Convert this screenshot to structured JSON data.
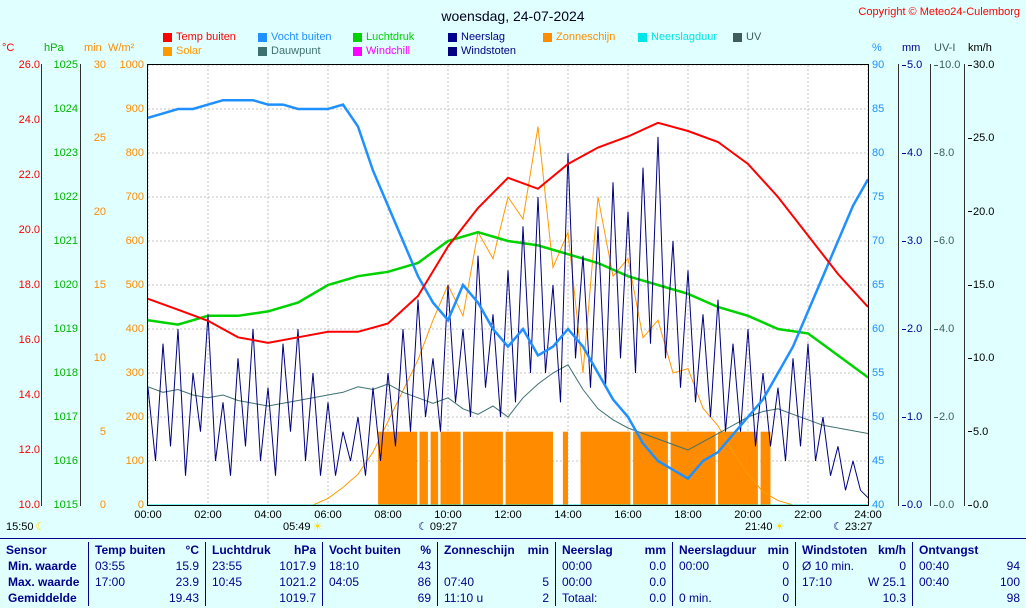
{
  "header": {
    "title": "woensdag, 24-07-2024",
    "copyright": "Copyright © Meteo24-Culemborg"
  },
  "legend": {
    "row1": [
      {
        "label": "Temp buiten",
        "color": "#ff0000"
      },
      {
        "label": "Vocht buiten",
        "color": "#1e90ff"
      },
      {
        "label": "Luchtdruk",
        "color": "#00d200"
      },
      {
        "label": "Neerslag",
        "color": "#000090"
      },
      {
        "label": "Zonneschijn",
        "color": "#ff8c00"
      },
      {
        "label": "Neerslagduur",
        "color": "#00e5e5"
      },
      {
        "label": "UV",
        "color": "#3d5c5c"
      }
    ],
    "row2": [
      {
        "label": "Solar",
        "color": "#ff9900"
      },
      {
        "label": "Dauwpunt",
        "color": "#3f7070"
      },
      {
        "label": "Windchill",
        "color": "#ff00ff"
      },
      {
        "label": "Windstoten",
        "color": "#000080"
      }
    ]
  },
  "axes": {
    "left": [
      {
        "name": "temp",
        "unit": "°C",
        "color": "#ff0000",
        "min": 10,
        "max": 26,
        "step": 2,
        "decimals": 1
      },
      {
        "name": "pressure",
        "unit": "hPa",
        "color": "#00b400",
        "min": 1015,
        "max": 1025,
        "step": 1,
        "decimals": 0
      },
      {
        "name": "sunshine",
        "unit": "min",
        "color": "#ff8c00",
        "min": 0,
        "max": 30,
        "step": 5,
        "decimals": 0
      },
      {
        "name": "solar",
        "unit": "W/m²",
        "color": "#ff8c00",
        "min": 0,
        "max": 1000,
        "step": 100,
        "decimals": 0
      }
    ],
    "right": [
      {
        "name": "humidity",
        "unit": "%",
        "color": "#1e90ff",
        "min": 40,
        "max": 90,
        "step": 5,
        "decimals": 0
      },
      {
        "name": "rain",
        "unit": "mm",
        "color": "#000090",
        "min": 0,
        "max": 5,
        "step": 1,
        "decimals": 1
      },
      {
        "name": "uv",
        "unit": "UV-I",
        "color": "#3d5c5c",
        "min": 0,
        "max": 10,
        "step": 2,
        "decimals": 1
      },
      {
        "name": "wind",
        "unit": "km/h",
        "color": "#000000",
        "min": 0,
        "max": 30,
        "step": 5,
        "decimals": 1
      }
    ],
    "x": {
      "labels": [
        "00:00",
        "02:00",
        "04:00",
        "06:00",
        "08:00",
        "10:00",
        "12:00",
        "14:00",
        "16:00",
        "18:00",
        "20:00",
        "22:00",
        "24:00"
      ]
    }
  },
  "astro": [
    {
      "time": "15:50",
      "icon": "moon-icon",
      "icon_color": "#ffd700",
      "icon_side": "after"
    },
    {
      "time": "05:49",
      "icon": "sun-icon",
      "icon_color": "#ffd700",
      "icon_side": "after"
    },
    {
      "time": "09:27",
      "icon": "moon-icon",
      "icon_color": "#000080",
      "icon_side": "before"
    },
    {
      "time": "21:40",
      "icon": "sun-icon",
      "icon_color": "#ffd700",
      "icon_side": "after"
    },
    {
      "time": "23:27",
      "icon": "moon-icon",
      "icon_color": "#000080",
      "icon_side": "before"
    }
  ],
  "chart_data": {
    "type": "line",
    "title": "woensdag, 24-07-2024",
    "x_unit": "hours",
    "x_range": [
      0,
      24
    ],
    "grid": true,
    "series": [
      {
        "name": "Solar",
        "unit": "W/m²",
        "color": "#ff9900",
        "width": 1,
        "axis": [
          0,
          1000
        ],
        "values": [
          0,
          0,
          0,
          0,
          0,
          0,
          0,
          0,
          0,
          0,
          0,
          0,
          15,
          40,
          70,
          120,
          190,
          260,
          330,
          420,
          500,
          430,
          620,
          560,
          700,
          650,
          860,
          540,
          620,
          300,
          700,
          520,
          560,
          380,
          420,
          300,
          310,
          220,
          180,
          120,
          70,
          30,
          10,
          0,
          0,
          0,
          0,
          0,
          0
        ]
      },
      {
        "name": "Dauwpunt",
        "unit": "°C",
        "color": "#3f7070",
        "width": 1,
        "axis": [
          10,
          26
        ],
        "values": [
          14.3,
          14.1,
          14.2,
          14.0,
          13.9,
          14.0,
          13.8,
          13.7,
          13.6,
          13.7,
          13.8,
          13.9,
          14.0,
          14.1,
          14.3,
          14.2,
          14.4,
          14.1,
          13.9,
          13.7,
          13.9,
          13.5,
          13.3,
          13.6,
          13.2,
          13.9,
          14.4,
          14.8,
          15.1,
          14.2,
          13.5,
          13.1,
          12.8,
          12.6,
          12.4,
          12.2,
          12.0,
          12.3,
          12.6,
          12.9,
          13.2,
          13.4,
          13.5,
          13.3,
          13.1,
          12.9,
          12.8,
          12.7,
          12.6
        ]
      },
      {
        "name": "Neerslag",
        "unit": "mm",
        "color": "#000090",
        "width": 1,
        "axis": [
          0,
          5
        ],
        "values": [
          0,
          0
        ]
      },
      {
        "name": "Neerslagduur",
        "unit": "min",
        "color": "#00e5e5",
        "width": 1,
        "axis": [
          0,
          30
        ],
        "values": [
          0,
          0
        ]
      },
      {
        "name": "Luchtdruk",
        "unit": "hPa",
        "color": "#00d200",
        "width": 2.5,
        "axis": [
          1015,
          1025
        ],
        "values": [
          1019.2,
          1019.1,
          1019.3,
          1019.3,
          1019.4,
          1019.6,
          1020.0,
          1020.2,
          1020.3,
          1020.5,
          1021.0,
          1021.2,
          1021.0,
          1020.9,
          1020.7,
          1020.5,
          1020.2,
          1020.0,
          1019.8,
          1019.5,
          1019.3,
          1019.0,
          1018.9,
          1018.4,
          1017.9
        ]
      },
      {
        "name": "Windstoten",
        "unit": "km/h",
        "color": "#000080",
        "width": 1,
        "axis": [
          0,
          30
        ],
        "values": [
          8,
          3,
          11,
          4,
          12,
          2,
          9,
          5,
          13,
          3,
          7,
          2,
          10,
          4,
          12,
          3,
          8,
          2,
          11,
          5,
          12,
          3,
          9,
          2,
          7,
          2,
          5,
          3,
          6,
          2,
          8,
          3,
          9,
          4,
          12,
          5,
          14,
          6,
          10,
          5,
          15,
          7,
          12,
          6,
          17,
          8,
          13,
          6,
          16,
          7,
          19,
          9,
          21,
          9,
          15,
          7,
          24,
          10,
          17,
          8,
          19,
          8,
          22,
          10,
          20,
          9,
          23,
          11,
          25.1,
          10,
          18,
          8,
          16,
          7,
          13,
          6,
          14,
          5,
          11,
          5,
          12,
          4,
          9,
          4,
          8,
          3,
          10,
          4,
          11,
          3,
          6,
          2,
          4,
          1,
          3,
          1,
          0.5
        ]
      },
      {
        "name": "Vocht buiten",
        "unit": "%",
        "color": "#1e90ff",
        "width": 2.5,
        "axis": [
          40,
          90
        ],
        "values": [
          84,
          84.5,
          85,
          85,
          85.5,
          86,
          86,
          86,
          85.5,
          85.5,
          85,
          85,
          85,
          85.5,
          83,
          78,
          74,
          70,
          66,
          63,
          61,
          65,
          63,
          60,
          58,
          60,
          57,
          58,
          60,
          58,
          55,
          52,
          50,
          47,
          45,
          44,
          43,
          45,
          46,
          48,
          50,
          52,
          55,
          58,
          62,
          66,
          70,
          74,
          77
        ]
      },
      {
        "name": "Temp buiten",
        "unit": "°C",
        "color": "#ff0000",
        "width": 2,
        "axis": [
          10,
          26
        ],
        "values": [
          17.5,
          17.1,
          16.7,
          16.1,
          15.9,
          16.1,
          16.3,
          16.3,
          16.6,
          17.6,
          19.4,
          20.8,
          21.9,
          21.5,
          22.4,
          23.0,
          23.4,
          23.9,
          23.6,
          23.2,
          22.4,
          21.2,
          19.8,
          18.4,
          17.2
        ]
      }
    ],
    "bars": {
      "name": "Zonneschijn",
      "unit": "min",
      "color": "#ff8c00",
      "axis": [
        0,
        30
      ],
      "value": 5,
      "intervals": [
        [
          7.67,
          8.97
        ],
        [
          9.05,
          9.33
        ],
        [
          9.42,
          9.67
        ],
        [
          9.75,
          10.42
        ],
        [
          10.5,
          11.83
        ],
        [
          11.92,
          13.5
        ],
        [
          13.83,
          14.0
        ],
        [
          14.42,
          16.08
        ],
        [
          16.17,
          17.33
        ],
        [
          17.42,
          18.92
        ],
        [
          19.0,
          20.33
        ],
        [
          20.42,
          20.75
        ]
      ]
    }
  },
  "table": {
    "columns": [
      {
        "header": "Sensor",
        "unit": ""
      },
      {
        "header": "Temp buiten",
        "unit": "°C"
      },
      {
        "header": "Luchtdruk",
        "unit": "hPa"
      },
      {
        "header": "Vocht buiten",
        "unit": "%"
      },
      {
        "header": "Zonneschijn",
        "unit": "min"
      },
      {
        "header": "Neerslag",
        "unit": "mm"
      },
      {
        "header": "Neerslagduur",
        "unit": "min"
      },
      {
        "header": "Windstoten",
        "unit": "km/h"
      },
      {
        "header": "Ontvangst",
        "unit": ""
      }
    ],
    "rows": [
      {
        "label": "Min. waarde",
        "cells": [
          [
            "03:55",
            "15.9"
          ],
          [
            "23:55",
            "1017.9"
          ],
          [
            "18:10",
            "43"
          ],
          [
            "",
            ""
          ],
          [
            "00:00",
            "0.0"
          ],
          [
            "00:00",
            "0"
          ],
          [
            "Ø 10 min.",
            "0"
          ],
          [
            "00:40",
            "94"
          ]
        ]
      },
      {
        "label": "Max. waarde",
        "cells": [
          [
            "17:00",
            "23.9"
          ],
          [
            "10:45",
            "1021.2"
          ],
          [
            "04:05",
            "86"
          ],
          [
            "07:40",
            "5"
          ],
          [
            "00:00",
            "0.0"
          ],
          [
            "",
            "0"
          ],
          [
            "17:10",
            "W 25.1"
          ],
          [
            "00:40",
            "100"
          ]
        ]
      },
      {
        "label": "Gemiddelde",
        "cells": [
          [
            "",
            "19.43"
          ],
          [
            "",
            "1019.7"
          ],
          [
            "",
            "69"
          ],
          [
            "11:10 u",
            "2"
          ],
          [
            "Totaal:",
            "0.0"
          ],
          [
            "0 min.",
            "0"
          ],
          [
            "",
            "10.3"
          ],
          [
            "",
            "98"
          ]
        ]
      }
    ]
  }
}
